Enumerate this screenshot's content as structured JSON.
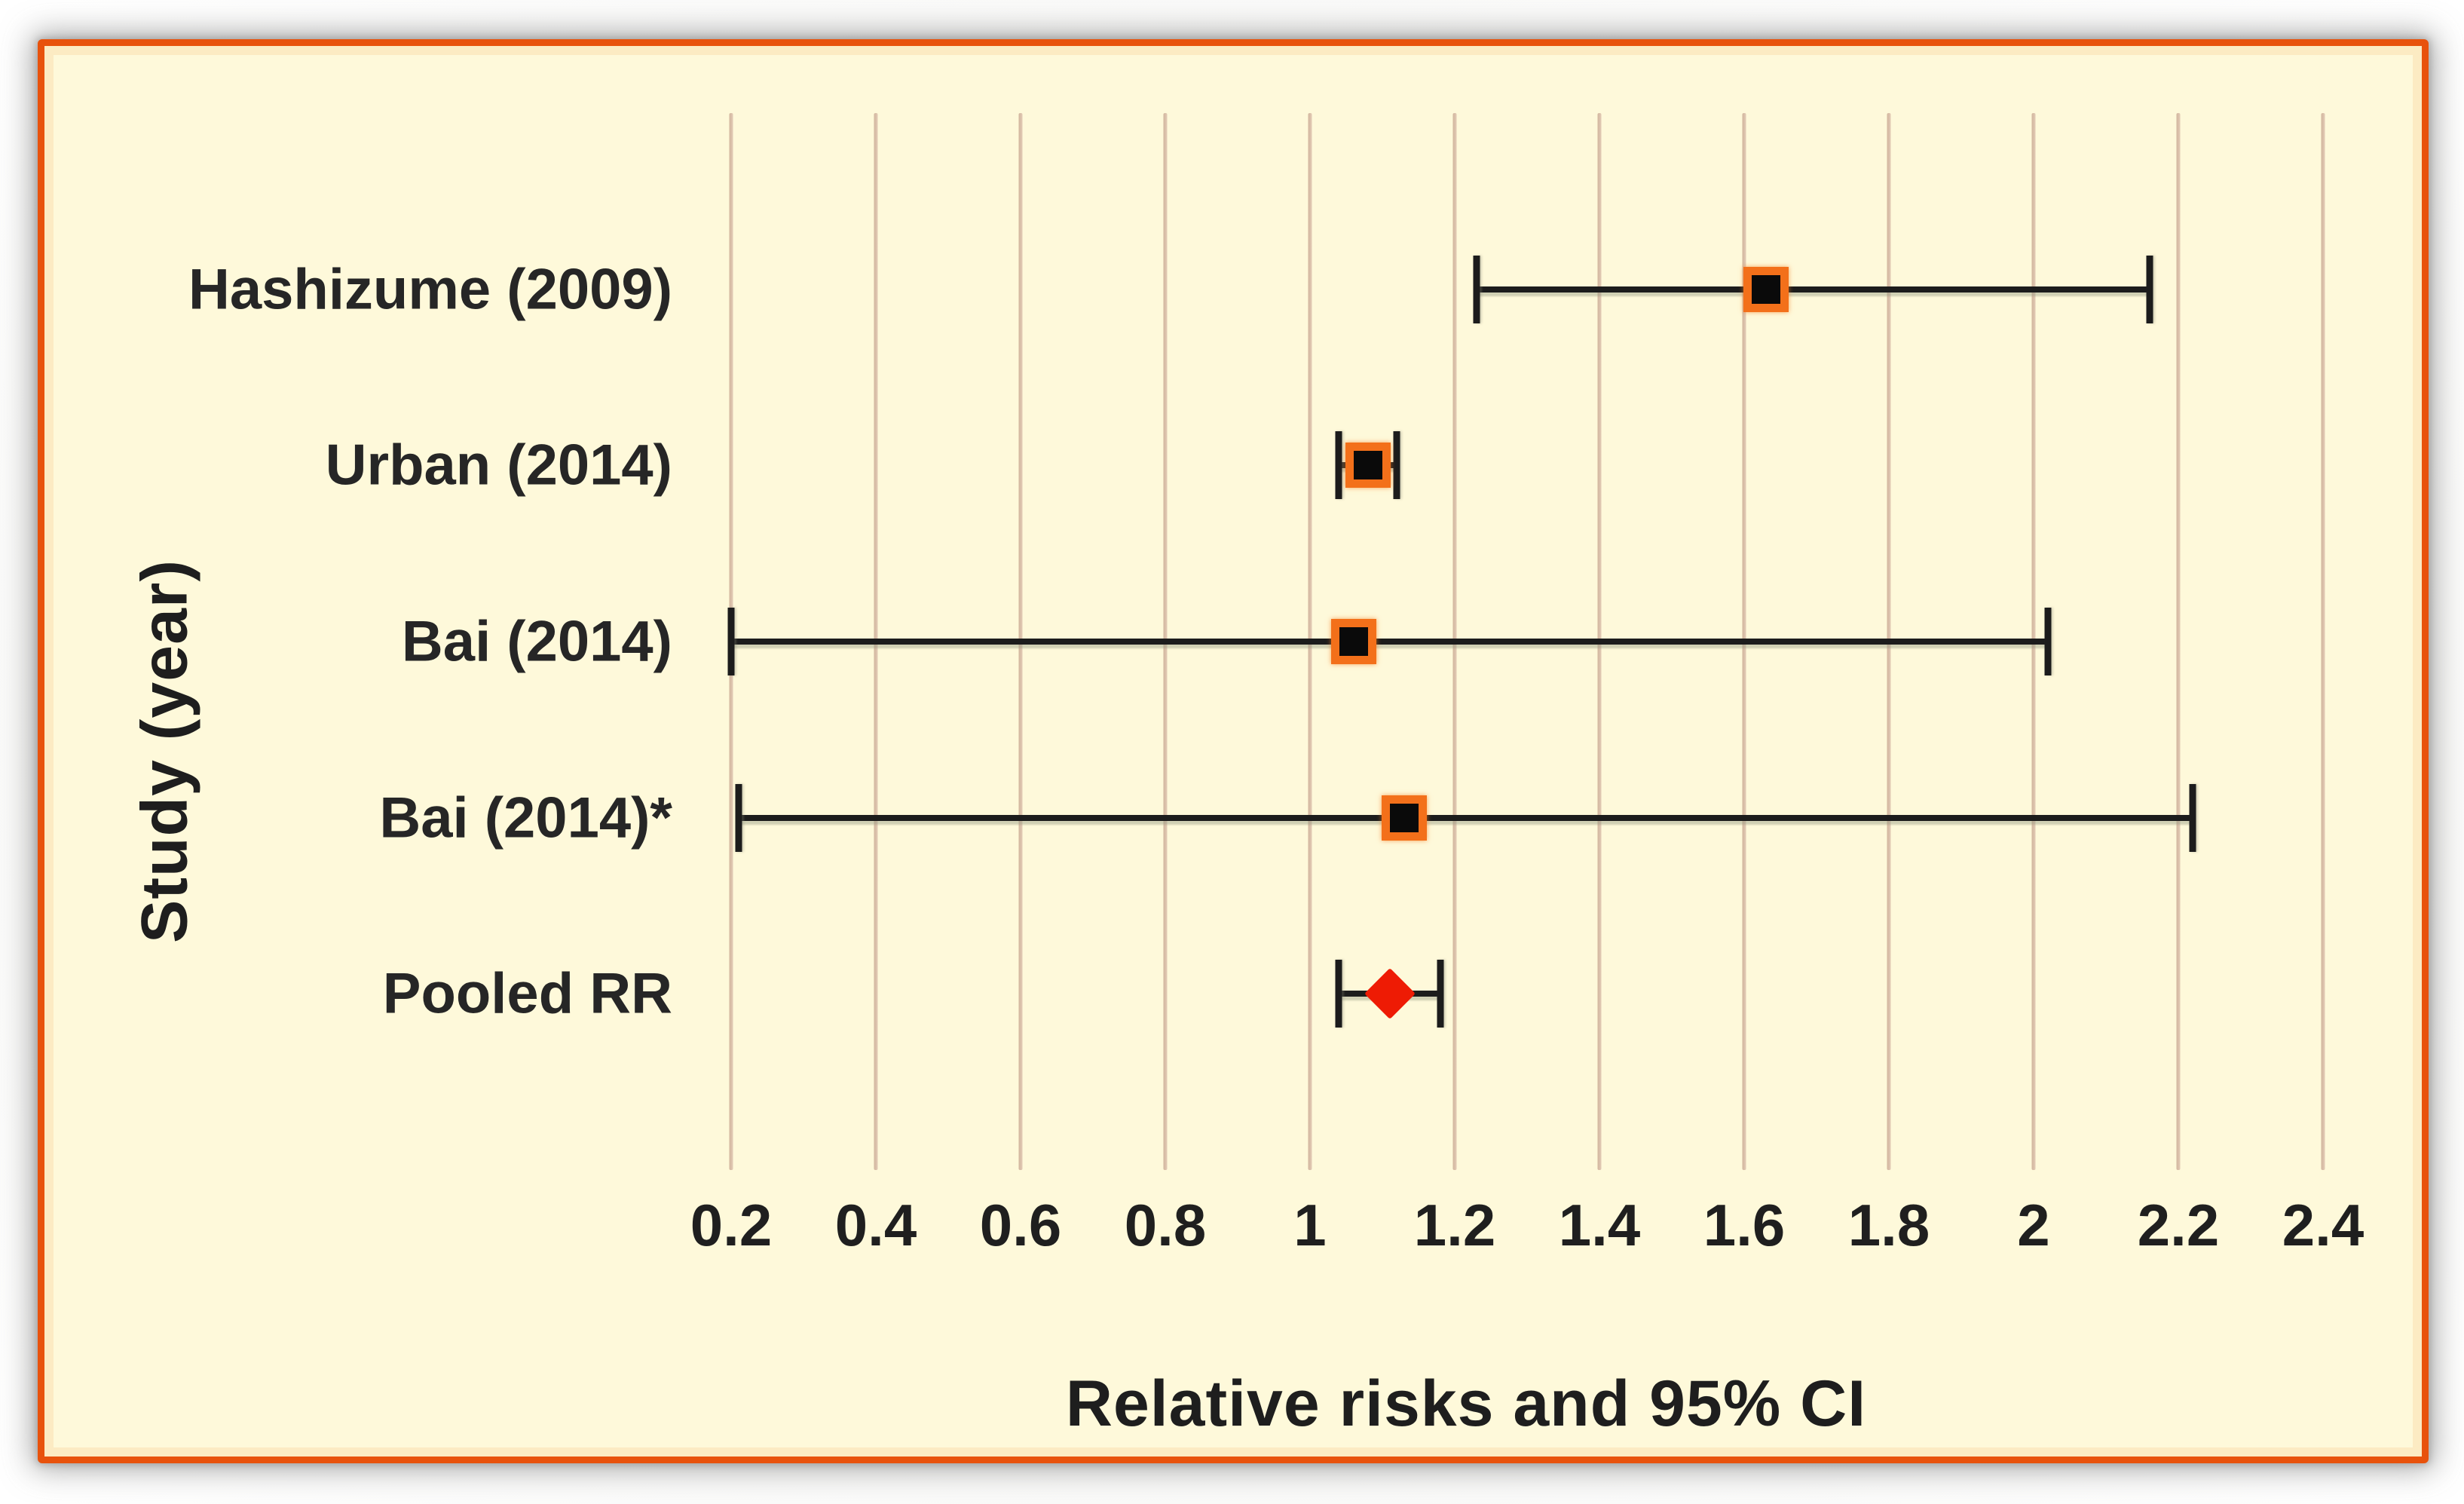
{
  "figure": {
    "background_color": "#FEF9DA",
    "frame_border_color": "#E8520C",
    "gridline_color": "#D9BEA7",
    "ci_color": "#1C1C1C",
    "square_fill": "#0A0A0A",
    "square_border_color": "#F3701A",
    "diamond_color": "#EE1B04",
    "text_color": "#262626"
  },
  "chart_data": {
    "type": "scatter",
    "variant": "forest-plot",
    "xlabel": "Relative risks and 95% CI",
    "ylabel": "Study (year)",
    "xlim": [
      0.2,
      2.4
    ],
    "x_ticks": [
      0.2,
      0.4,
      0.6,
      0.8,
      1.0,
      1.2,
      1.4,
      1.6,
      1.8,
      2.0,
      2.2,
      2.4
    ],
    "x_tick_labels": [
      "0.2",
      "0.4",
      "0.6",
      "0.8",
      "1",
      "1.2",
      "1.4",
      "1.6",
      "1.8",
      "2",
      "2.2",
      "2.4"
    ],
    "grid": "vertical-only",
    "legend": "none",
    "studies": [
      {
        "label": "Hashizume (2009)",
        "rr": 1.63,
        "ci_low": 1.23,
        "ci_high": 2.16,
        "marker": "square"
      },
      {
        "label": "Urban (2014)",
        "rr": 1.08,
        "ci_low": 1.04,
        "ci_high": 1.12,
        "marker": "square"
      },
      {
        "label": "Bai (2014)",
        "rr": 1.06,
        "ci_low": 0.2,
        "ci_high": 2.02,
        "marker": "square"
      },
      {
        "label": "Bai (2014)*",
        "rr": 1.13,
        "ci_low": 0.21,
        "ci_high": 2.22,
        "marker": "square"
      },
      {
        "label": "Pooled RR",
        "rr": 1.11,
        "ci_low": 1.04,
        "ci_high": 1.18,
        "marker": "diamond"
      }
    ]
  }
}
